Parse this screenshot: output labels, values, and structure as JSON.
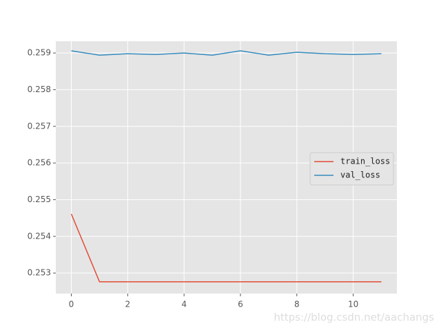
{
  "chart_data": {
    "type": "line",
    "x": [
      0,
      1,
      2,
      3,
      4,
      5,
      6,
      7,
      8,
      9,
      10,
      11
    ],
    "series": [
      {
        "name": "train_loss",
        "color": "#E24A33",
        "values": [
          0.25461,
          0.25276,
          0.25276,
          0.25276,
          0.25276,
          0.25276,
          0.25276,
          0.25276,
          0.25276,
          0.25276,
          0.25276,
          0.25276
        ]
      },
      {
        "name": "val_loss",
        "color": "#348ABD",
        "values": [
          0.25906,
          0.25894,
          0.25898,
          0.25896,
          0.259,
          0.25894,
          0.25906,
          0.25894,
          0.25902,
          0.25898,
          0.25896,
          0.25898
        ]
      }
    ],
    "xlim": [
      -0.55,
      11.55
    ],
    "xticks": [
      0,
      2,
      4,
      6,
      8,
      10
    ],
    "ylim": [
      0.25244,
      0.25932
    ],
    "yticks": [
      0.253,
      0.254,
      0.255,
      0.256,
      0.257,
      0.258,
      0.259
    ],
    "grid": true,
    "legend": "center right",
    "watermark": "https://blog.csdn.net/aachangs"
  }
}
